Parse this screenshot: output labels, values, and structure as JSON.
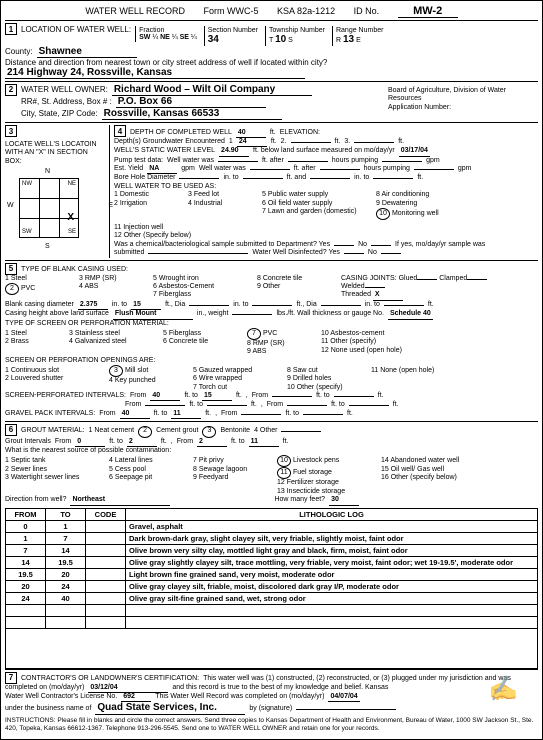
{
  "header": {
    "title": "WATER WELL RECORD",
    "form": "Form WWC-5",
    "ksa": "KSA 82a-1212",
    "id_label": "ID No.",
    "id": "MW-2"
  },
  "loc": {
    "title": "LOCATION OF WATER WELL:",
    "county_lbl": "County:",
    "county": "Shawnee",
    "fraction": "Fraction",
    "sw": "SW",
    "ne": "NE",
    "se": "SE",
    "q": "¼",
    "section_lbl": "Section Number",
    "section": "34",
    "township_lbl": "Township Number",
    "township": "10",
    "range_lbl": "Range Number",
    "range": "13",
    "t": "T",
    "s": "S",
    "r": "R",
    "e": "E",
    "dist_lbl": "Distance and direction from nearest town or city street address of well if located within city?",
    "address": "214 Highway 24, Rossville, Kansas"
  },
  "owner": {
    "title": "WATER WELL OWNER:",
    "name": "Richard Wood – Wilt Oil Company",
    "addr_lbl": "RR#, St. Address, Box # :",
    "box": "P.O. Box 66",
    "city_lbl": "City, State, ZIP Code:",
    "city": "Rossville, Kansas 66533",
    "board": "Board of Agriculture, Division of Water Resources",
    "app": "Application Number:"
  },
  "sec3": {
    "title": "LOCATE WELL'S LOCATOIN WITH AN \"X\" IN SECTION BOX:",
    "n": "N",
    "s": "S",
    "e": "E",
    "w": "W",
    "ne": "NE",
    "nw": "NW",
    "se": "SE",
    "sw": "SW",
    "x": "X"
  },
  "sec4": {
    "title": "DEPTH OF COMPLETED WELL",
    "depth": "40",
    "ft": "ft.",
    "elev": "ELEVATION:",
    "gw": "Depth(s) Groundwater Encountered",
    "gw1": "1",
    "gw1v": "24",
    "gw2": "2.",
    "gw3": "3.",
    "swl": "WELL'S STATIC WATER LEVEL",
    "swlv": "24.90",
    "swl2": "ft. below land surface measured on mo/day/yr",
    "swld": "03/17/04",
    "pump": "Pump test data:",
    "ww": "Well water was",
    "after": "ft. after",
    "hrs": "hours pumping",
    "gpm": "gpm",
    "est": "Est. Yield",
    "estv": "NA",
    "bore": "Bore Hole Diameter",
    "in": "in. to",
    "ft2": "ft. and",
    "use": "WELL WATER TO BE USED AS:",
    "u1": "1  Domestic",
    "u2": "2  Irrigation",
    "u3": "3  Feed lot",
    "u4": "4  Industrial",
    "u5": "5  Public water supply",
    "u6": "6  Oil field water supply",
    "u7": "7  Lawn and garden (domestic)",
    "u8": "8  Air conditioning",
    "u9": "9  Dewatering",
    "u10": "Monitoring well",
    "u10n": "10",
    "u11": "11  Injection well",
    "u12": "12  Other (Specify below)",
    "chem": "Was a chemical/bacteriological sample submitted to Department? Yes",
    "no": "No",
    "mo": "If yes, mo/day/yr sample was",
    "sub": "submitted",
    "disinf": "Water Well Disinfected? Yes"
  },
  "sec5": {
    "title": "TYPE OF BLANK CASING USED:",
    "c1": "1  Steel",
    "c2": "PVC",
    "c2n": "2",
    "c3": "3  RMP (SR)",
    "c4": "4  ABS",
    "c5": "5  Wrought iron",
    "c6": "6  Asbestos-Cement",
    "c7": "7  Fiberglass",
    "c8": "8  Concrete tile",
    "c9": "9  Other",
    "joints": "CASING JOINTS:",
    "glued": "Glued",
    "clamped": "Clamped",
    "welded": "Welded",
    "threaded": "Threaded",
    "x": "X",
    "dia": "Blank casing diameter",
    "diav": "2.375",
    "into": "in. to",
    "len": "15",
    "ftdia": "ft., Dia",
    "ft": "ft.",
    "height": "Casing height above land surface",
    "heightv": "Flush Mount",
    "wt": "in., weight",
    "lbs": "lbs./ft. Wall thickness or gauge No.",
    "sched": "Schedule 40",
    "screen": "TYPE OF SCREEN OR PERFORATION MATERIAL:",
    "s1": "1  Steel",
    "s2": "2  Brass",
    "s3": "3  Stainless steel",
    "s4": "4  Galvanized steel",
    "s5": "5  Fiberglass",
    "s6": "6  Concrete tile",
    "s7": "PVC",
    "s7n": "7",
    "s8": "8  RMP (SR)",
    "s9": "9  ABS",
    "s10": "10  Asbestos-cement",
    "s11": "11  Other (specify)",
    "s12": "12  None used (open hole)",
    "open": "SCREEN OR PERFORATION OPENINGS ARE:",
    "o1": "1  Continuous slot",
    "o2": "2  Louvered shutter",
    "o3": "Mill slot",
    "o3n": "3",
    "o4": "4  Key punched",
    "o5": "5  Gauzed wrapped",
    "o6": "6  Wire wrapped",
    "o7": "7  Torch cut",
    "o8": "8  Saw cut",
    "o9": "9  Drilled holes",
    "o10": "10  Other (specify)",
    "o11": "11  None (open hole)",
    "perf": "SCREEN-PERFORATED INTERVALS:",
    "from": "From",
    "to": "ft. to",
    "pf1": "40",
    "pt1": "15",
    "grav": "GRAVEL PACK INTERVALS:",
    "gf1": "40",
    "gt1": "11"
  },
  "sec6": {
    "title": "GROUT MATERIAL:",
    "g1": "1  Neat cement",
    "g2": "Cement grout",
    "g2n": "2",
    "g3": "Bentonite",
    "g3n": "3",
    "g4": "4  Other",
    "gi": "Grout Intervals",
    "from": "From",
    "gf": "0",
    "to": "ft. to",
    "gt": "2",
    "gf2": "2",
    "gt2": "11",
    "cont": "What is the nearest source of possible contamination:",
    "c1": "1  Septic tank",
    "c2": "2  Sewer lines",
    "c3": "3  Watertight sewer lines",
    "c4": "4  Lateral lines",
    "c5": "5  Cess pool",
    "c6": "6  Seepage pit",
    "c7": "7  Pit privy",
    "c8": "8  Sewage lagoon",
    "c9": "9  Feedyard",
    "c10": "Livestock pens",
    "c10n": "10",
    "c11": "Fuel storage",
    "c11n": "11",
    "c12": "12  Fertilizer storage",
    "c13": "13  Insecticide storage",
    "c14": "14  Abandoned water well",
    "c15": "15  Oil well/ Gas well",
    "c16": "16  Other (specify below)",
    "dir": "Direction from well?",
    "dirv": "Northeast",
    "feet": "How many feet?",
    "feetv": "30"
  },
  "log": {
    "h1": "FROM",
    "h2": "TO",
    "h3": "CODE",
    "h4": "LITHOLOGIC LOG",
    "rows": [
      {
        "f": "0",
        "t": "1",
        "d": "Gravel, asphalt"
      },
      {
        "f": "1",
        "t": "7",
        "d": "Dark brown-dark gray, slight clayey silt, very friable, slightly moist, faint odor"
      },
      {
        "f": "7",
        "t": "14",
        "d": "Olive brown very silty clay, mottled light gray and black, firm, moist, faint odor"
      },
      {
        "f": "14",
        "t": "19.5",
        "d": "Olive gray slightly clayey silt, trace mottling, very friable, very moist, faint odor; wet 19-19.5', moderate odor"
      },
      {
        "f": "19.5",
        "t": "20",
        "d": "Light brown fine grained sand, very moist, moderate odor"
      },
      {
        "f": "20",
        "t": "24",
        "d": "Olive gray clayey silt, friable, moist, discolored dark gray I/P, moderate odor"
      },
      {
        "f": "24",
        "t": "40",
        "d": "Olive gray silt-fine grained sand, wet, strong odor"
      }
    ]
  },
  "sec7": {
    "title": "CONTRACTOR'S OR LANDOWNER'S CERTIFICATION:",
    "cert": "This water well was (1) constructed, (2) reconstructed, or (3) plugged under my jurisdiction and was",
    "done": "completed on (mo/day/yr)",
    "date": "03/12/04",
    "best": "and this record is true to the best of my knowledge and belief.  Kansas",
    "lic": "Water Well Contractor's License No.",
    "licv": "692",
    "rec": "This Water Well Record was completed on (mo/day/yr)",
    "rdate": "04/07/04",
    "biz": "under the business name of",
    "bizv": "Quad State Services, Inc.",
    "by": "by (signature)",
    "inst": "INSTRUCTIONS:  Please fill in blanks and circle the correct answers.  Send three copies to Kansas Department of Health and Environment, Bureau of Water, 1000 SW Jackson St., Ste. 420, Topeka, Kansas 66612-1367.  Telephone  913-296-5545.  Send one to WATER WELL OWNER and retain one for your records."
  }
}
